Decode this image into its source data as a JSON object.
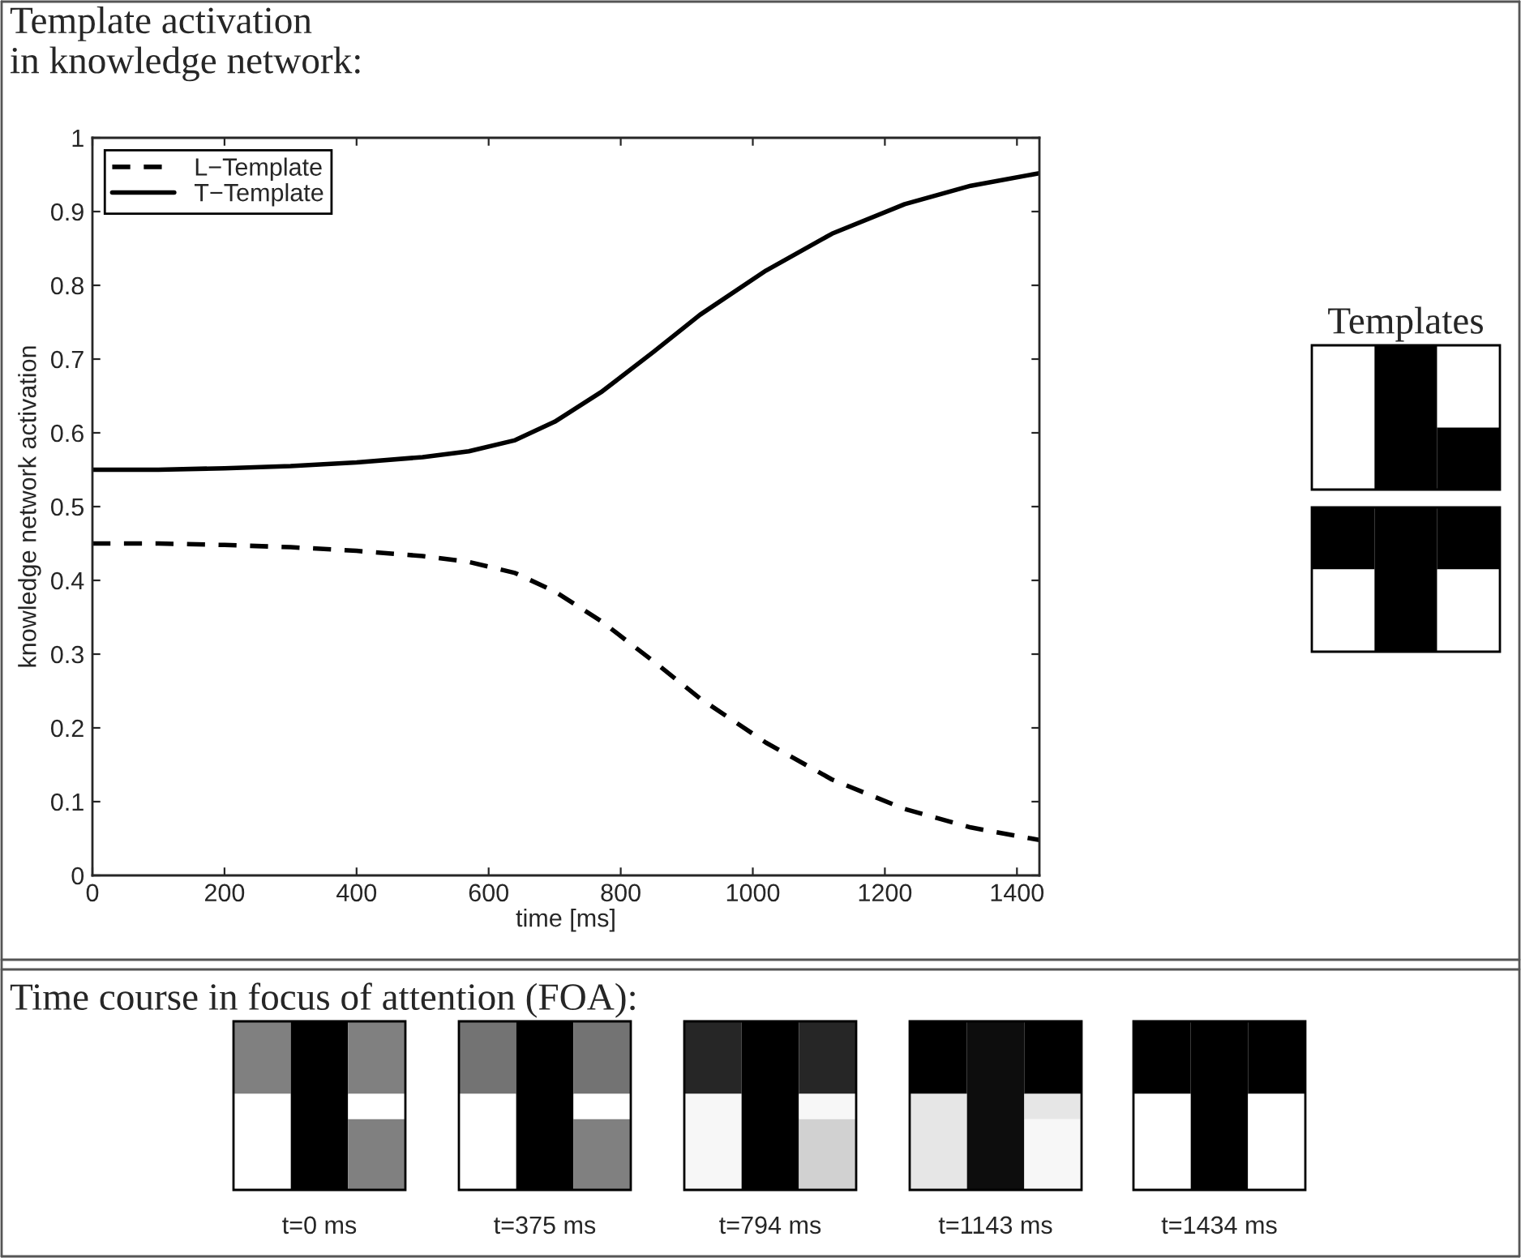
{
  "chart_data": {
    "type": "line",
    "title": "Template activation\nin knowledge network:",
    "xlabel": "time [ms]",
    "ylabel": "knowledge network activation",
    "x": [
      0,
      100,
      200,
      300,
      400,
      500,
      570,
      640,
      700,
      770,
      850,
      920,
      1020,
      1120,
      1230,
      1330,
      1434
    ],
    "series": [
      {
        "name": "L−Template",
        "color": "#000000",
        "line_style": "dashed",
        "values": [
          0.45,
          0.45,
          0.448,
          0.445,
          0.44,
          0.433,
          0.425,
          0.41,
          0.385,
          0.345,
          0.29,
          0.24,
          0.18,
          0.13,
          0.09,
          0.065,
          0.048
        ]
      },
      {
        "name": "T−Template",
        "color": "#000000",
        "line_style": "solid",
        "values": [
          0.55,
          0.55,
          0.552,
          0.555,
          0.56,
          0.567,
          0.575,
          0.59,
          0.615,
          0.655,
          0.71,
          0.76,
          0.82,
          0.87,
          0.91,
          0.935,
          0.952
        ]
      }
    ],
    "xlim": [
      0,
      1434
    ],
    "xticks": [
      0,
      200,
      400,
      600,
      800,
      1000,
      1200,
      1400
    ],
    "ylim": [
      0,
      1
    ],
    "yticks": [
      0,
      0.1,
      0.2,
      0.3,
      0.4,
      0.5,
      0.6,
      0.7,
      0.8,
      0.9,
      1
    ],
    "grid": false,
    "legend": "top left",
    "marker": "none",
    "annotations": [
      "Templates",
      "Time course in focus of attention (FOA):",
      "t=0 ms",
      "t=375 ms",
      "t=794 ms",
      "t=1143 ms",
      "t=1434 ms"
    ]
  }
}
